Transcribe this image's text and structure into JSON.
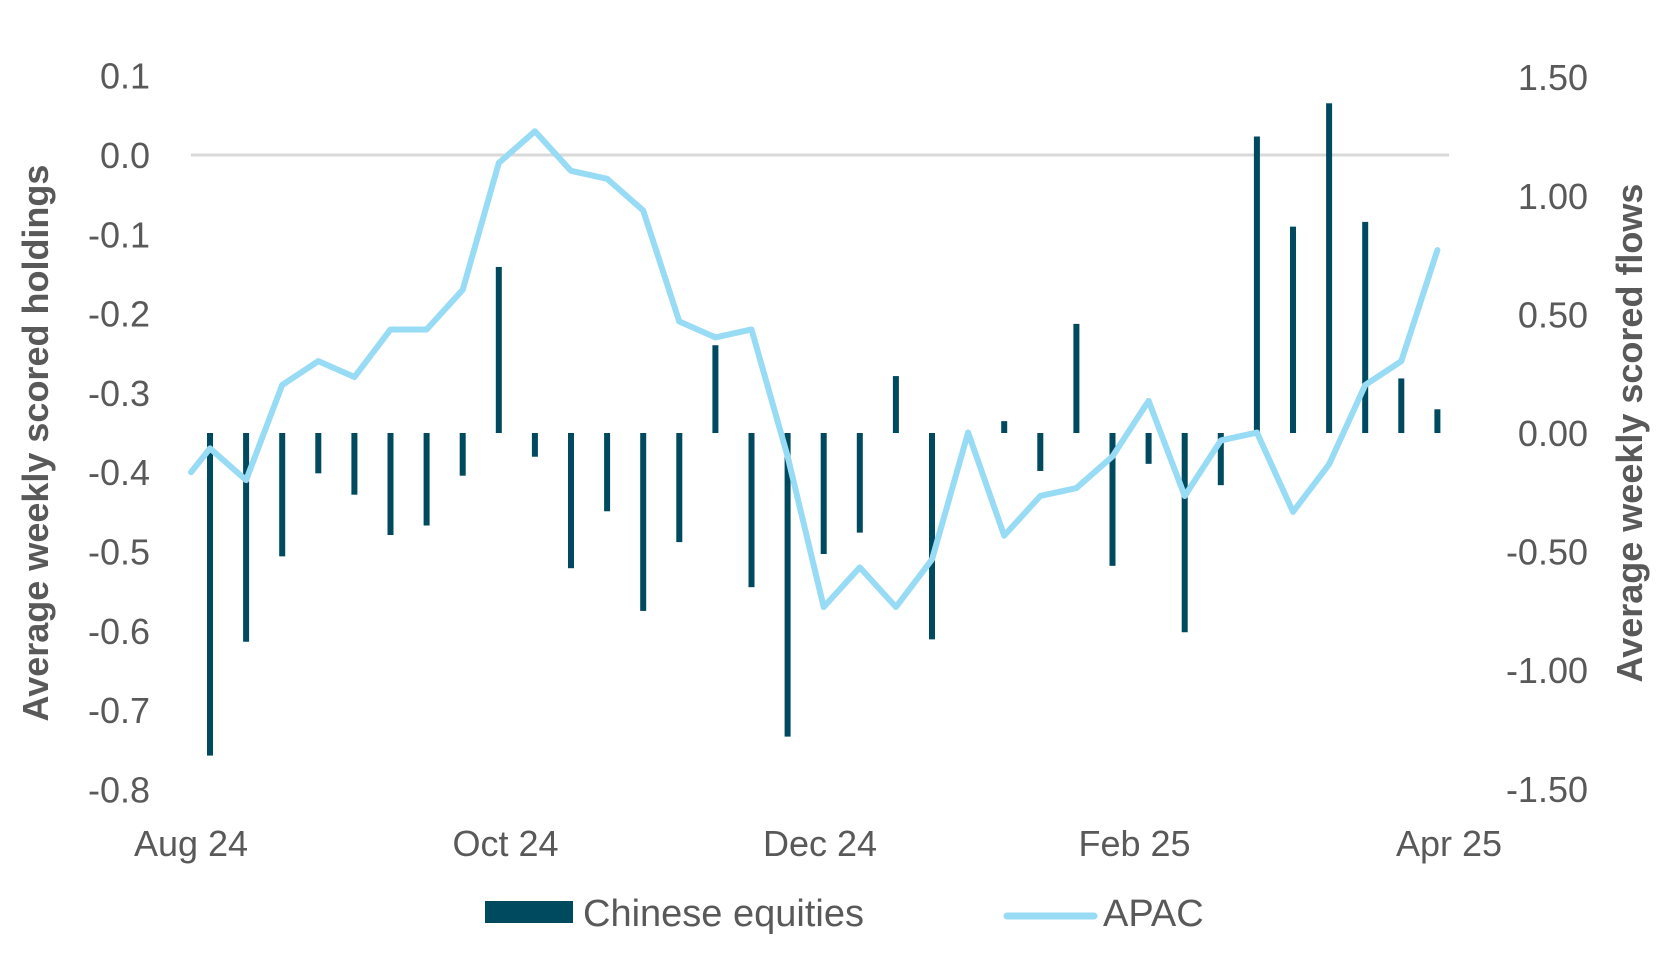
{
  "chart_data": {
    "type": "bar+line",
    "title": "",
    "xlabel": "",
    "ylabel_left": "Average weekly scored holdings",
    "ylabel_right": "Average weekly scored flows",
    "x_tick_labels": [
      "Aug 24",
      "Oct 24",
      "Dec 24",
      "Feb 25",
      "Apr 25"
    ],
    "left_axis": {
      "ylim": [
        -0.8,
        0.1
      ],
      "ticks": [
        0.1,
        0.0,
        -0.1,
        -0.2,
        -0.3,
        -0.4,
        -0.5,
        -0.6,
        -0.7,
        -0.8
      ],
      "tick_labels": [
        "0.1",
        "0.0",
        "-0.1",
        "-0.2",
        "-0.3",
        "-0.4",
        "-0.5",
        "-0.6",
        "-0.7",
        "-0.8"
      ]
    },
    "right_axis": {
      "ylim": [
        -1.5,
        1.5
      ],
      "ticks": [
        1.5,
        1.0,
        0.5,
        0.0,
        -0.5,
        -1.0,
        -1.5
      ],
      "tick_labels": [
        "1.50",
        "1.00",
        "0.50",
        "0.00",
        "-0.50",
        "-1.00",
        "-1.50"
      ]
    },
    "grid": {
      "horizontal_line_at_left_zero": true
    },
    "legend": {
      "position": "bottom",
      "entries": [
        "Chinese equities",
        "APAC"
      ]
    },
    "series": [
      {
        "name": "Chinese equities",
        "type": "bar",
        "axis": "right",
        "color": "#004A5F",
        "values": [
          -1.36,
          -0.88,
          -0.52,
          -0.17,
          -0.26,
          -0.43,
          -0.39,
          -0.18,
          0.7,
          -0.1,
          -0.57,
          -0.33,
          -0.75,
          -0.46,
          0.37,
          -0.65,
          -1.28,
          -0.51,
          -0.42,
          0.24,
          -0.87,
          -0.01,
          0.05,
          -0.16,
          0.46,
          -0.56,
          -0.13,
          -0.84,
          -0.22,
          1.25,
          0.87,
          1.39,
          0.89,
          0.23,
          0.1
        ]
      },
      {
        "name": "APAC",
        "type": "line",
        "axis": "left",
        "color": "#97DBF5",
        "start_value": -0.4,
        "values": [
          -0.37,
          -0.41,
          -0.29,
          -0.26,
          -0.28,
          -0.22,
          -0.22,
          -0.17,
          -0.01,
          0.03,
          -0.02,
          -0.03,
          -0.07,
          -0.21,
          -0.23,
          -0.22,
          -0.38,
          -0.57,
          -0.52,
          -0.57,
          -0.51,
          -0.35,
          -0.48,
          -0.43,
          -0.42,
          -0.38,
          -0.31,
          -0.43,
          -0.36,
          -0.35,
          -0.45,
          -0.39,
          -0.29,
          -0.26,
          -0.12
        ]
      }
    ]
  },
  "colors": {
    "bar": "#004A5F",
    "line": "#97DBF5",
    "gridline": "#D9D9D9",
    "text": "#595959"
  }
}
